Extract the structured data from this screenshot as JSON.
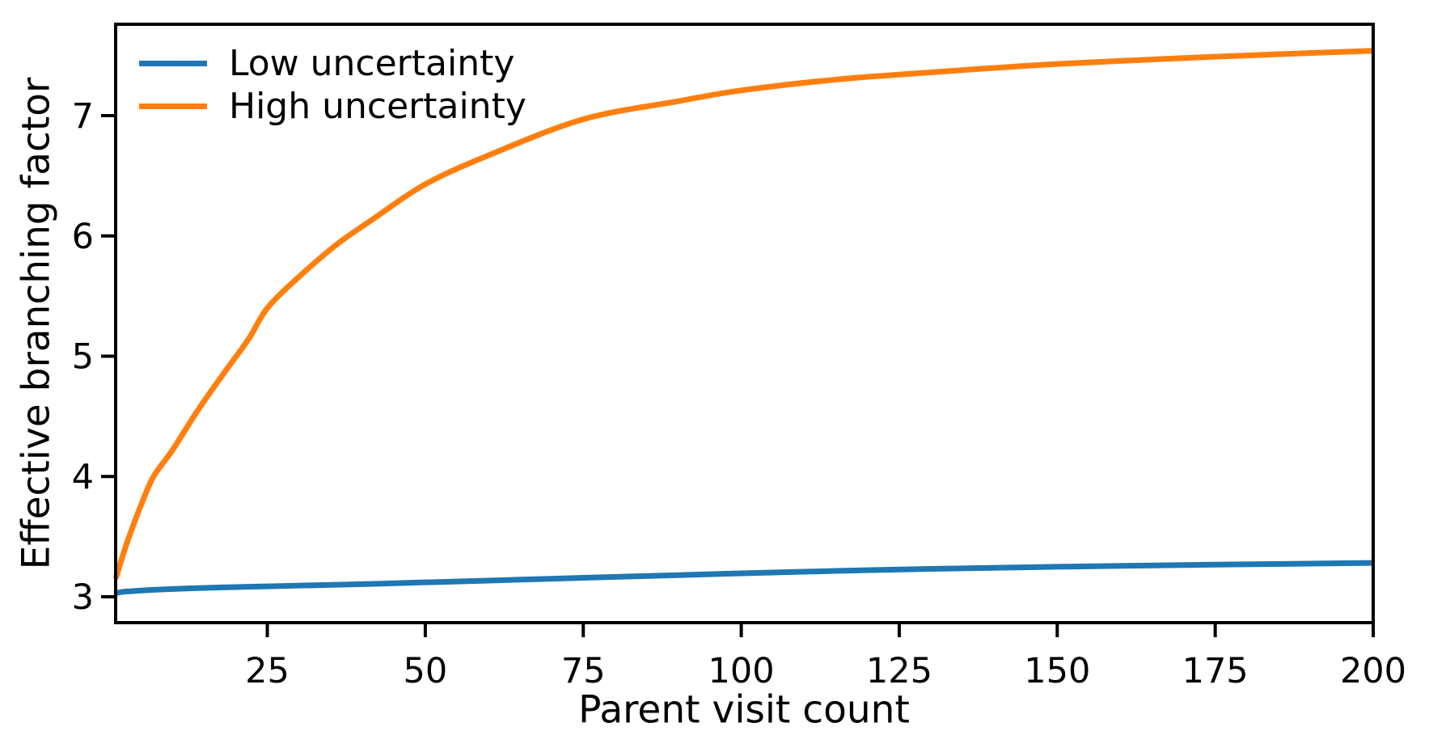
{
  "figure": {
    "background": "#ffffff",
    "axes_color": "#000000",
    "text_color": "#000000"
  },
  "chart_data": {
    "type": "line",
    "title": "",
    "xlabel": "Parent visit count",
    "ylabel": "Effective branching factor",
    "xlim": [
      1,
      200
    ],
    "ylim": [
      2.785,
      7.76
    ],
    "x_ticks": [
      25,
      50,
      75,
      100,
      125,
      150,
      175,
      200
    ],
    "y_ticks": [
      3,
      4,
      5,
      6,
      7
    ],
    "grid": false,
    "legend_position": "upper left",
    "x": [
      1,
      2,
      3,
      5,
      7,
      10,
      14,
      18,
      22,
      25,
      30,
      36,
      42,
      50,
      60,
      75,
      90,
      100,
      115,
      130,
      150,
      175,
      200
    ],
    "series": [
      {
        "name": "Low uncertainty",
        "color": "#1f77b4",
        "values": [
          3.03,
          3.04,
          3.045,
          3.052,
          3.058,
          3.065,
          3.072,
          3.078,
          3.083,
          3.087,
          3.093,
          3.1,
          3.108,
          3.12,
          3.135,
          3.158,
          3.18,
          3.195,
          3.215,
          3.232,
          3.25,
          3.267,
          3.282
        ]
      },
      {
        "name": "High uncertainty",
        "color": "#ff7f0e",
        "values": [
          3.15,
          3.32,
          3.48,
          3.76,
          4.0,
          4.22,
          4.55,
          4.85,
          5.14,
          5.4,
          5.66,
          5.93,
          6.15,
          6.43,
          6.67,
          6.97,
          7.12,
          7.21,
          7.3,
          7.36,
          7.43,
          7.49,
          7.54
        ]
      }
    ]
  }
}
